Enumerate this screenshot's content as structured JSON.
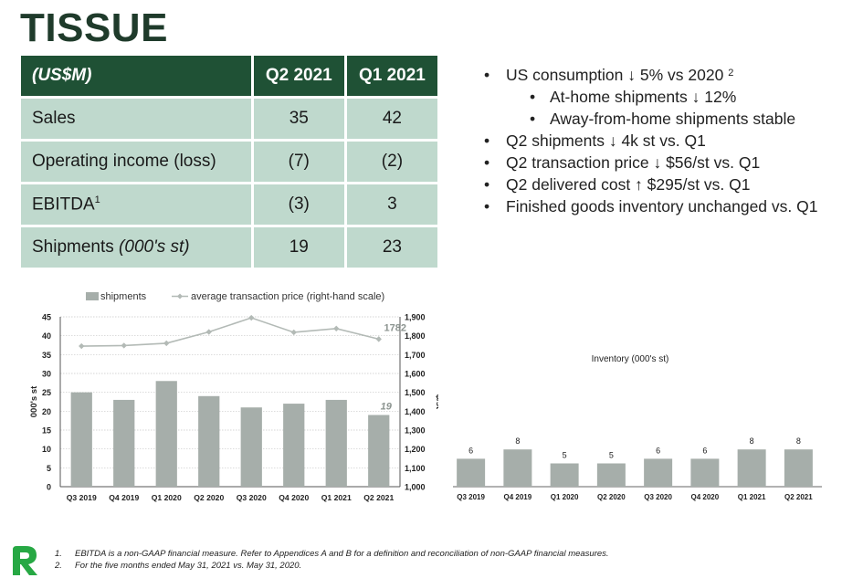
{
  "title": "TISSUE",
  "table": {
    "header": [
      "(US$M)",
      "Q2 2021",
      "Q1 2021"
    ],
    "rows": [
      {
        "label": "Sales",
        "sup": "",
        "label_suffix": "",
        "q2": "35",
        "q1": "42"
      },
      {
        "label": "Operating income (loss)",
        "sup": "",
        "label_suffix": "",
        "q2": "(7)",
        "q1": "(2)"
      },
      {
        "label": "EBITDA",
        "sup": "1",
        "label_suffix": "",
        "q2": "(3)",
        "q1": "3"
      },
      {
        "label": "Shipments ",
        "sup": "",
        "label_suffix": "(000's st)",
        "q2": "19",
        "q1": "23"
      }
    ]
  },
  "bullets": [
    {
      "level": 1,
      "text": "US consumption ↓ 5% vs 2020 ",
      "sup": "2"
    },
    {
      "level": 2,
      "text": "At-home shipments ↓ 12%",
      "sup": ""
    },
    {
      "level": 2,
      "text": "Away-from-home shipments stable",
      "sup": ""
    },
    {
      "level": 1,
      "text": "Q2 shipments ↓ 4k st vs. Q1",
      "sup": ""
    },
    {
      "level": 1,
      "text": "Q2 transaction price ↓ $56/st vs. Q1",
      "sup": ""
    },
    {
      "level": 1,
      "text": "Q2 delivered cost ↑ $295/st vs. Q1",
      "sup": ""
    },
    {
      "level": 1,
      "text": "Finished goods inventory unchanged vs. Q1",
      "sup": ""
    }
  ],
  "chart_data": [
    {
      "type": "bar",
      "categories": [
        "Q3 2019",
        "Q4 2019",
        "Q1 2020",
        "Q2 2020",
        "Q3 2020",
        "Q4 2020",
        "Q1 2021",
        "Q2 2021"
      ],
      "series": [
        {
          "name": "shipments",
          "type": "bar",
          "axis": "left",
          "values": [
            25,
            23,
            28,
            24,
            21,
            22,
            23,
            19
          ],
          "color": "#a6aeaa"
        },
        {
          "name": "average transaction price (right-hand scale)",
          "type": "line",
          "axis": "right",
          "values": [
            1745,
            1748,
            1760,
            1820,
            1895,
            1818,
            1838,
            1782
          ],
          "color": "#b3bab6"
        }
      ],
      "ylabel": "000's st",
      "y2label": "$/st",
      "ylim": [
        0,
        45
      ],
      "yticks": [
        0,
        5,
        10,
        15,
        20,
        25,
        30,
        35,
        40,
        45
      ],
      "y2lim": [
        1000,
        1900
      ],
      "y2ticks": [
        "1,000",
        "1,100",
        "1,200",
        "1,300",
        "1,400",
        "1,500",
        "1,600",
        "1,700",
        "1,800",
        "1,900"
      ],
      "annotations": [
        {
          "text": "19",
          "series": "shipments",
          "index": 7
        },
        {
          "text": "1782",
          "series": "average transaction price (right-hand scale)",
          "index": 7
        }
      ],
      "grid": true,
      "legend": "top"
    },
    {
      "type": "bar",
      "title": "Inventory (000's st)",
      "categories": [
        "Q3 2019",
        "Q4 2019",
        "Q1 2020",
        "Q2 2020",
        "Q3 2020",
        "Q4 2020",
        "Q1 2021",
        "Q2 2021"
      ],
      "values": [
        6,
        8,
        5,
        5,
        6,
        6,
        8,
        8
      ],
      "data_labels": [
        "6",
        "8",
        "5",
        "5",
        "6",
        "6",
        "8",
        "8"
      ],
      "color": "#a6aeaa",
      "grid": false
    }
  ],
  "logo": {
    "icon": "leaf-r-logo-icon",
    "color": "#27a844"
  },
  "footnotes": [
    {
      "num": "1.",
      "text": "EBITDA is a non-GAAP financial measure. Refer to Appendices A and B for a definition and reconciliation of non-GAAP financial measures."
    },
    {
      "num": "2.",
      "text": "For the five months ended May 31, 2021 vs. May 31, 2020."
    }
  ]
}
